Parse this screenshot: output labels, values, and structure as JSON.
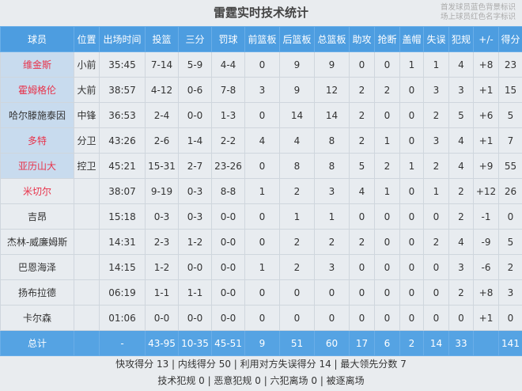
{
  "title": "雷霆实时技术统计",
  "legend": [
    "首发球员蓝色背景标识",
    "场上球员红色名字标识"
  ],
  "colors": {
    "header": "#4d9de0",
    "starter_bg": "#c8dbee",
    "oncourt_name": "#e8324a"
  },
  "columns": [
    "球员",
    "位置",
    "出场时间",
    "投篮",
    "三分",
    "罚球",
    "前篮板",
    "后篮板",
    "总篮板",
    "助攻",
    "抢断",
    "盖帽",
    "失误",
    "犯规",
    "+/-",
    "得分"
  ],
  "players": [
    {
      "starter": true,
      "on_court": true,
      "cells": [
        "维金斯",
        "小前",
        "35:45",
        "7-14",
        "5-9",
        "4-4",
        "0",
        "9",
        "9",
        "0",
        "0",
        "1",
        "1",
        "4",
        "+8",
        "23"
      ]
    },
    {
      "starter": true,
      "on_court": true,
      "cells": [
        "霍姆格伦",
        "大前",
        "38:57",
        "4-12",
        "0-6",
        "7-8",
        "3",
        "9",
        "12",
        "2",
        "2",
        "0",
        "3",
        "3",
        "+1",
        "15"
      ]
    },
    {
      "starter": true,
      "on_court": false,
      "cells": [
        "哈尔滕施泰因",
        "中锋",
        "36:53",
        "2-4",
        "0-0",
        "1-3",
        "0",
        "14",
        "14",
        "2",
        "0",
        "0",
        "2",
        "5",
        "+6",
        "5"
      ]
    },
    {
      "starter": true,
      "on_court": true,
      "cells": [
        "多特",
        "分卫",
        "43:26",
        "2-6",
        "1-4",
        "2-2",
        "4",
        "4",
        "8",
        "2",
        "1",
        "0",
        "3",
        "4",
        "+1",
        "7"
      ]
    },
    {
      "starter": true,
      "on_court": true,
      "cells": [
        "亚历山大",
        "控卫",
        "45:21",
        "15-31",
        "2-7",
        "23-26",
        "0",
        "8",
        "8",
        "5",
        "2",
        "1",
        "2",
        "4",
        "+9",
        "55"
      ]
    },
    {
      "starter": false,
      "on_court": true,
      "cells": [
        "米切尔",
        "",
        "38:07",
        "9-19",
        "0-3",
        "8-8",
        "1",
        "2",
        "3",
        "4",
        "1",
        "0",
        "1",
        "2",
        "+12",
        "26"
      ]
    },
    {
      "starter": false,
      "on_court": false,
      "cells": [
        "吉昂",
        "",
        "15:18",
        "0-3",
        "0-3",
        "0-0",
        "0",
        "1",
        "1",
        "0",
        "0",
        "0",
        "0",
        "2",
        "-1",
        "0"
      ]
    },
    {
      "starter": false,
      "on_court": false,
      "cells": [
        "杰林-威廉姆斯",
        "",
        "14:31",
        "2-3",
        "1-2",
        "0-0",
        "0",
        "2",
        "2",
        "2",
        "0",
        "0",
        "2",
        "4",
        "-9",
        "5"
      ]
    },
    {
      "starter": false,
      "on_court": false,
      "cells": [
        "巴恩海泽",
        "",
        "14:15",
        "1-2",
        "0-0",
        "0-0",
        "1",
        "2",
        "3",
        "0",
        "0",
        "0",
        "0",
        "3",
        "-6",
        "2"
      ]
    },
    {
      "starter": false,
      "on_court": false,
      "cells": [
        "扬布拉德",
        "",
        "06:19",
        "1-1",
        "1-1",
        "0-0",
        "0",
        "0",
        "0",
        "0",
        "0",
        "0",
        "0",
        "2",
        "+8",
        "3"
      ]
    },
    {
      "starter": false,
      "on_court": false,
      "cells": [
        "卡尔森",
        "",
        "01:06",
        "0-0",
        "0-0",
        "0-0",
        "0",
        "0",
        "0",
        "0",
        "0",
        "0",
        "0",
        "0",
        "+1",
        "0"
      ]
    }
  ],
  "total": [
    "总计",
    "",
    "-",
    "43-95",
    "10-35",
    "45-51",
    "9",
    "51",
    "60",
    "17",
    "6",
    "2",
    "14",
    "33",
    "",
    "141"
  ],
  "footer": [
    "快攻得分 13 | 内线得分 50 | 利用对方失误得分 14 | 最大领先分数 7",
    "技术犯规 0 | 恶意犯规 0 | 六犯离场 0 | 被逐离场"
  ]
}
